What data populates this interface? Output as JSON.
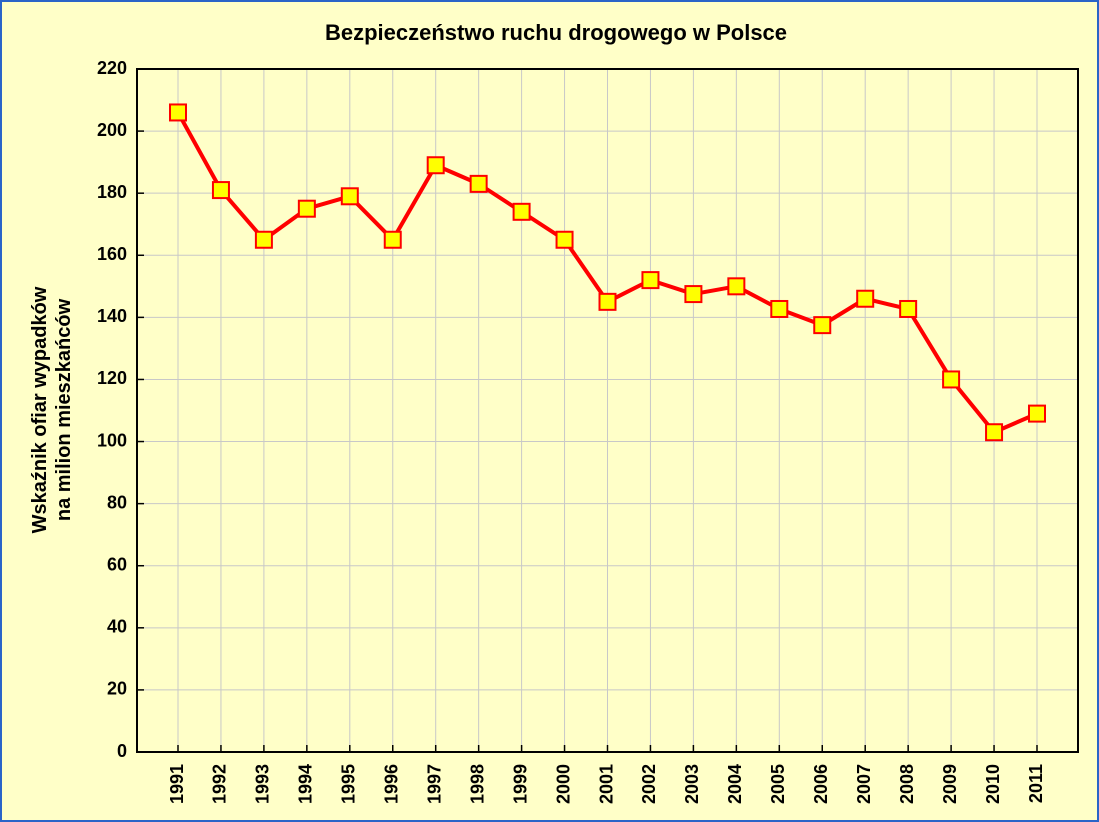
{
  "chart_data": {
    "type": "line",
    "title": "Bezpieczeństwo ruchu drogowego w Polsce",
    "ylabel": [
      "Wskaźnik ofiar wypadków",
      "na milion mieszkańców"
    ],
    "categories": [
      "1991",
      "1992",
      "1993",
      "1994",
      "1995",
      "1996",
      "1997",
      "1998",
      "1999",
      "2000",
      "2001",
      "2002",
      "2003",
      "2004",
      "2005",
      "2006",
      "2007",
      "2008",
      "2009",
      "2010",
      "2011"
    ],
    "series": [
      {
        "color": "#ff0000",
        "marker_color": "#ffff00",
        "values": [
          206,
          181,
          165,
          175,
          179,
          165,
          189,
          183,
          174,
          165,
          145,
          152,
          147.5,
          150,
          142.7,
          137.5,
          146,
          142.7,
          120,
          103,
          109
        ]
      }
    ],
    "ylim": [
      0,
      220
    ],
    "yticks": [
      0,
      20,
      40,
      60,
      80,
      100,
      120,
      140,
      160,
      180,
      200,
      220
    ],
    "grid": true
  }
}
